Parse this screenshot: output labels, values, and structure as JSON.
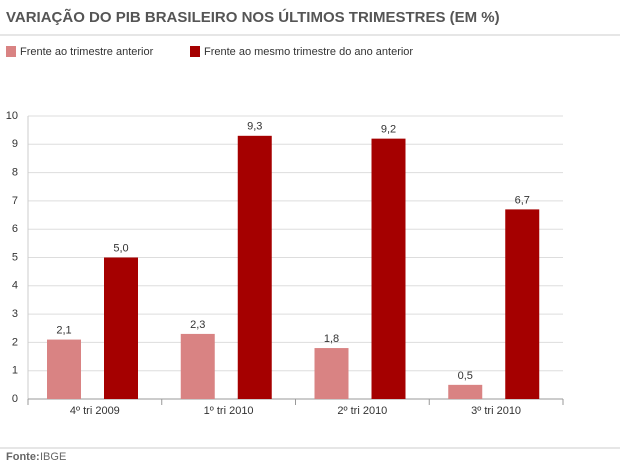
{
  "chart_data": {
    "type": "bar",
    "title": "VARIAÇÃO DO PIB BRASILEIRO NOS ÚLTIMOS TRIMESTRES (EM %)",
    "categories": [
      "4º tri 2009",
      "1º tri 2010",
      "2º tri 2010",
      "3º tri 2010"
    ],
    "series": [
      {
        "name": "Frente ao trimestre anterior",
        "color": "#d98383",
        "values": [
          2.1,
          2.3,
          1.8,
          0.5
        ],
        "value_labels": [
          "2,1",
          "2,3",
          "1,8",
          "0,5"
        ]
      },
      {
        "name": "Frente ao mesmo trimestre do ano anterior",
        "color": "#a50000",
        "values": [
          5.0,
          9.3,
          9.2,
          6.7
        ],
        "value_labels": [
          "5,0",
          "9,3",
          "9,2",
          "6,7"
        ]
      }
    ],
    "ylim": [
      0,
      10
    ],
    "yticks": [
      0,
      1,
      2,
      3,
      4,
      5,
      6,
      7,
      8,
      9,
      10
    ],
    "grid": true,
    "source_label": "Fonte:",
    "source": "IBGE"
  }
}
